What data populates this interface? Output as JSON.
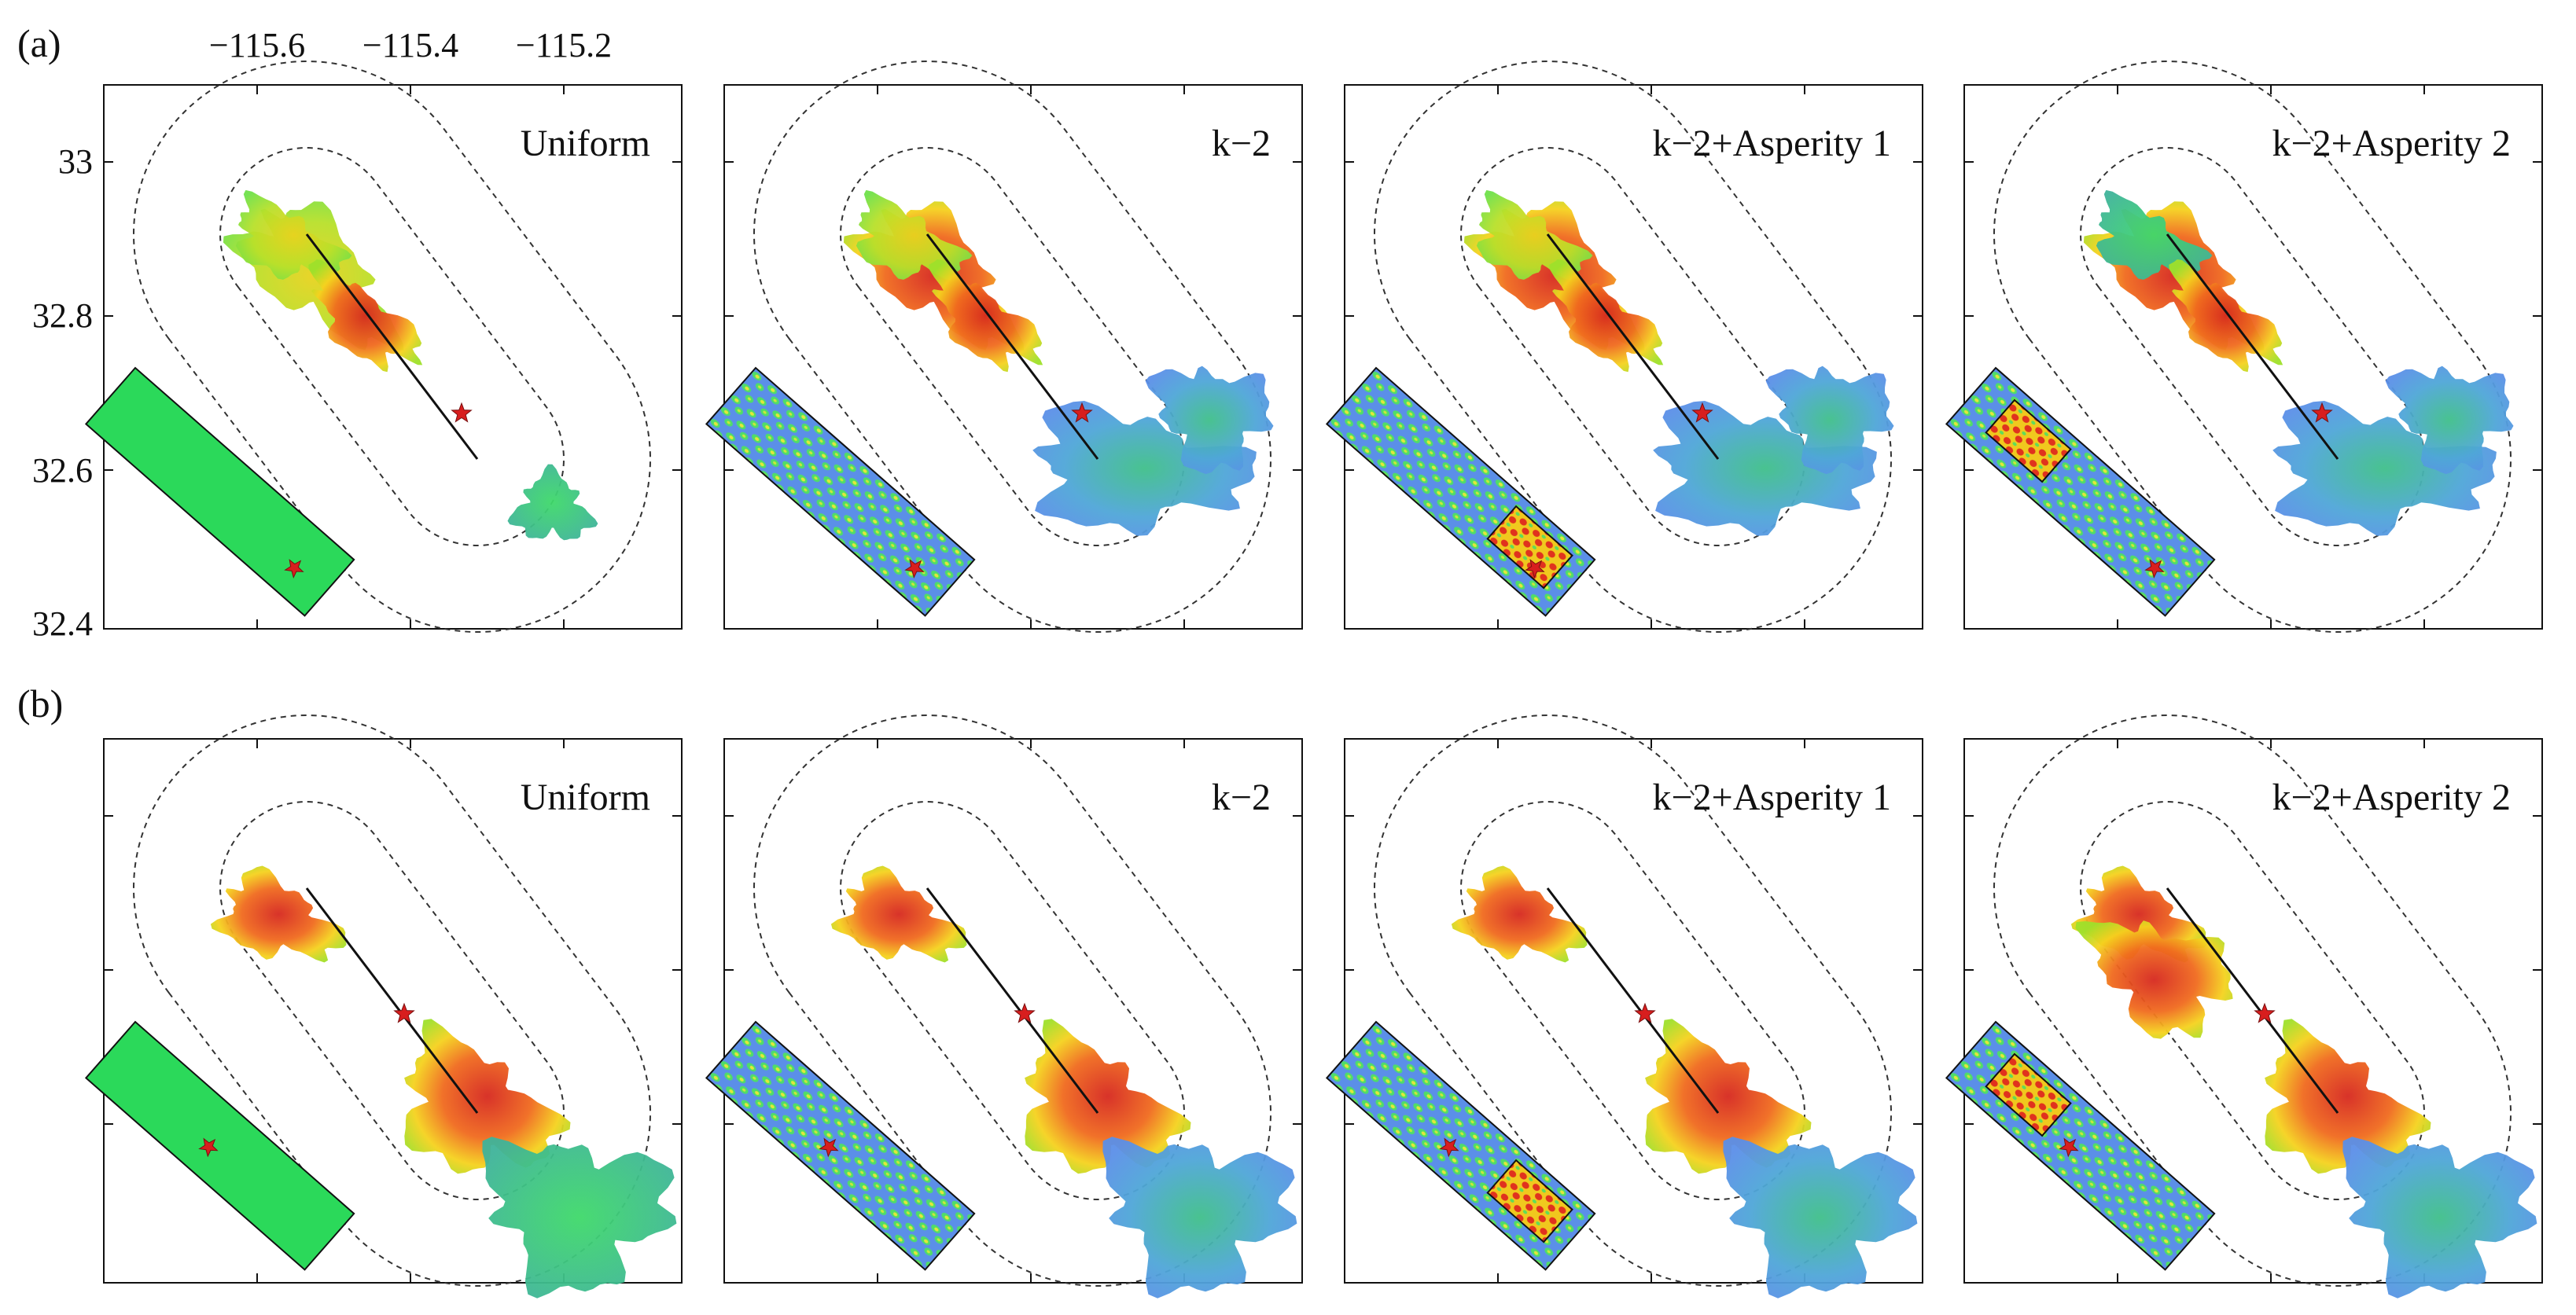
{
  "rows": [
    {
      "label": "(a)",
      "hypocenter": "south"
    },
    {
      "label": "(b)",
      "hypocenter": "center"
    }
  ],
  "columns": [
    {
      "model": "Uniform",
      "slip": "uniform",
      "asperity": "none"
    },
    {
      "model": "k−2",
      "slip": "k-2",
      "asperity": "none"
    },
    {
      "model": "k−2+Asperity 1",
      "slip": "k-2",
      "asperity": "south"
    },
    {
      "model": "k−2+Asperity 2",
      "slip": "k-2",
      "asperity": "north"
    }
  ],
  "axes": {
    "x_ticks": [
      "−115.6",
      "−115.4",
      "−115.2"
    ],
    "y_ticks": [
      "33",
      "32.8",
      "32.6",
      "32.4"
    ]
  },
  "colors": {
    "uniform_fill": "#2bd95a",
    "heterogeneous_fill": "#5b8fe8",
    "hypocenter_star": "#d81e1e",
    "high_value": "#e8321e",
    "mid_value": "#f5e61e",
    "low_value": "#4fa0e8"
  },
  "icons": {
    "hypocenter": "star-icon"
  }
}
